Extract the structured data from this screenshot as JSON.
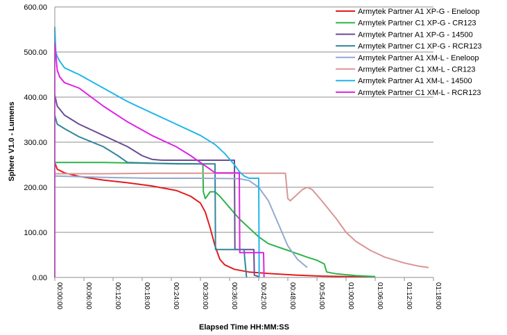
{
  "chart_data": {
    "type": "line",
    "xlabel": "Elapsed Time HH:MM:SS",
    "ylabel": "Sphere V1.0 - Lumens",
    "x_unit": "minutes",
    "xlim": [
      0,
      78
    ],
    "ylim": [
      0,
      600
    ],
    "x_ticks": [
      "00:00:00",
      "00:06:00",
      "00:12:00",
      "00:18:00",
      "00:24:00",
      "00:30:00",
      "00:36:00",
      "00:42:00",
      "00:48:00",
      "00:54:00",
      "01:00:00",
      "01:06:00",
      "01:12:00",
      "01:18:00"
    ],
    "y_ticks": [
      "0.00",
      "100.00",
      "200.00",
      "300.00",
      "400.00",
      "500.00",
      "600.00"
    ],
    "grid": "horizontal",
    "legend_position": "top-right",
    "series": [
      {
        "name": "Armytek Partner A1 XP-G - Eneloop",
        "color": "#e41a1c",
        "points": [
          [
            0,
            0
          ],
          [
            0,
            255
          ],
          [
            0.5,
            240
          ],
          [
            2,
            232
          ],
          [
            5,
            224
          ],
          [
            10,
            216
          ],
          [
            15,
            210
          ],
          [
            20,
            203
          ],
          [
            25,
            193
          ],
          [
            28,
            180
          ],
          [
            30,
            165
          ],
          [
            31,
            145
          ],
          [
            32,
            110
          ],
          [
            33,
            70
          ],
          [
            34,
            40
          ],
          [
            35,
            28
          ],
          [
            37,
            18
          ],
          [
            40,
            12
          ],
          [
            45,
            8
          ],
          [
            50,
            5
          ],
          [
            55,
            3
          ],
          [
            60,
            2
          ],
          [
            66,
            1
          ]
        ]
      },
      {
        "name": "Armytek Partner C1 XP-G - CR123",
        "color": "#2db34a",
        "points": [
          [
            0,
            0
          ],
          [
            0,
            255
          ],
          [
            10,
            255
          ],
          [
            20,
            253
          ],
          [
            30,
            252
          ],
          [
            30.5,
            250
          ],
          [
            30.6,
            190
          ],
          [
            31,
            175
          ],
          [
            32,
            190
          ],
          [
            33,
            190
          ],
          [
            34,
            180
          ],
          [
            36,
            155
          ],
          [
            38,
            130
          ],
          [
            40,
            110
          ],
          [
            42,
            90
          ],
          [
            44,
            75
          ],
          [
            48,
            60
          ],
          [
            52,
            45
          ],
          [
            54,
            38
          ],
          [
            55.5,
            30
          ],
          [
            56,
            12
          ],
          [
            58,
            8
          ],
          [
            62,
            4
          ],
          [
            66,
            2
          ]
        ]
      },
      {
        "name": "Armytek Partner A1 XP-G - 14500",
        "color": "#6a4c93",
        "points": [
          [
            0,
            0
          ],
          [
            0,
            405
          ],
          [
            0.5,
            380
          ],
          [
            2,
            360
          ],
          [
            5,
            340
          ],
          [
            10,
            315
          ],
          [
            15,
            290
          ],
          [
            18,
            270
          ],
          [
            20,
            262
          ],
          [
            22,
            260
          ],
          [
            30,
            260
          ],
          [
            37,
            260
          ],
          [
            37.1,
            62
          ],
          [
            41,
            62
          ],
          [
            41.1,
            5
          ],
          [
            42,
            2
          ]
        ]
      },
      {
        "name": "Armytek Partner C1 XP-G - RCR123",
        "color": "#31859c",
        "points": [
          [
            0,
            0
          ],
          [
            0,
            360
          ],
          [
            0.5,
            340
          ],
          [
            2,
            330
          ],
          [
            5,
            312
          ],
          [
            10,
            290
          ],
          [
            13,
            270
          ],
          [
            15,
            255
          ],
          [
            25,
            252
          ],
          [
            33,
            252
          ],
          [
            33.1,
            62
          ],
          [
            39,
            62
          ],
          [
            39.1,
            45
          ],
          [
            39.5,
            0
          ]
        ]
      },
      {
        "name": "Armytek Partner A1 XM-L - Eneloop",
        "color": "#93a9cf",
        "points": [
          [
            0,
            0
          ],
          [
            0,
            225
          ],
          [
            10,
            222
          ],
          [
            20,
            220
          ],
          [
            30,
            220
          ],
          [
            38,
            219
          ],
          [
            40,
            215
          ],
          [
            42,
            200
          ],
          [
            44,
            170
          ],
          [
            46,
            120
          ],
          [
            48,
            70
          ],
          [
            50,
            40
          ],
          [
            52,
            22
          ]
        ]
      },
      {
        "name": "Armytek Partner C1 XM-L - CR123",
        "color": "#d99594",
        "points": [
          [
            0,
            0
          ],
          [
            0,
            230
          ],
          [
            10,
            230
          ],
          [
            20,
            231
          ],
          [
            30,
            231
          ],
          [
            40,
            231
          ],
          [
            47.5,
            231
          ],
          [
            48,
            175
          ],
          [
            48.5,
            170
          ],
          [
            50,
            185
          ],
          [
            51,
            195
          ],
          [
            52,
            200
          ],
          [
            53,
            195
          ],
          [
            55,
            170
          ],
          [
            58,
            130
          ],
          [
            60,
            100
          ],
          [
            62,
            80
          ],
          [
            65,
            60
          ],
          [
            68,
            45
          ],
          [
            72,
            32
          ],
          [
            75,
            25
          ],
          [
            77,
            22
          ]
        ]
      },
      {
        "name": "Armytek Partner A1 XM-L - 14500",
        "color": "#1fb6ec",
        "points": [
          [
            0,
            0
          ],
          [
            0,
            555
          ],
          [
            0.2,
            500
          ],
          [
            0.5,
            490
          ],
          [
            1,
            480
          ],
          [
            2,
            465
          ],
          [
            5,
            450
          ],
          [
            10,
            420
          ],
          [
            15,
            390
          ],
          [
            20,
            365
          ],
          [
            25,
            340
          ],
          [
            30,
            315
          ],
          [
            33,
            295
          ],
          [
            35,
            275
          ],
          [
            37,
            250
          ],
          [
            38,
            235
          ],
          [
            39,
            225
          ],
          [
            40,
            220
          ],
          [
            42,
            220
          ],
          [
            42.1,
            0
          ]
        ]
      },
      {
        "name": "Armytek Partner C1 XM-L - RCR123",
        "color": "#e020e6",
        "points": [
          [
            0,
            0
          ],
          [
            0,
            520
          ],
          [
            0.5,
            460
          ],
          [
            1,
            445
          ],
          [
            2,
            432
          ],
          [
            5,
            420
          ],
          [
            10,
            380
          ],
          [
            15,
            345
          ],
          [
            20,
            315
          ],
          [
            25,
            290
          ],
          [
            28,
            270
          ],
          [
            30,
            255
          ],
          [
            32,
            240
          ],
          [
            33,
            232
          ],
          [
            38,
            232
          ],
          [
            38.1,
            55
          ],
          [
            43,
            55
          ],
          [
            43.1,
            0
          ]
        ]
      }
    ]
  }
}
